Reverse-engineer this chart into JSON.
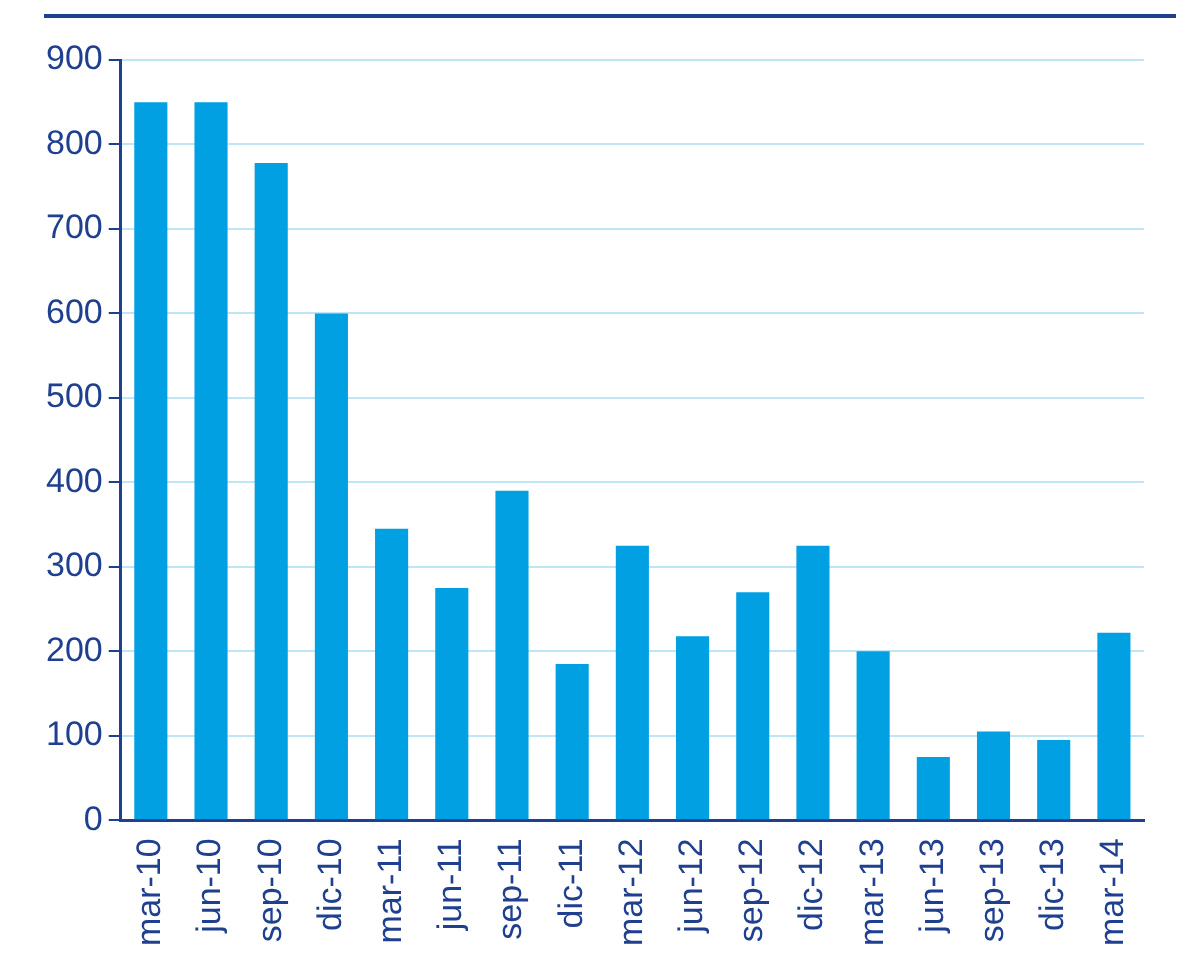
{
  "chart_data": {
    "type": "bar",
    "categories": [
      "mar-10",
      "jun-10",
      "sep-10",
      "dic-10",
      "mar-11",
      "jun-11",
      "sep-11",
      "dic-11",
      "mar-12",
      "jun-12",
      "sep-12",
      "dic-12",
      "mar-13",
      "jun-13",
      "sep-13",
      "dic-13",
      "mar-14"
    ],
    "values": [
      850,
      850,
      778,
      600,
      345,
      275,
      390,
      185,
      325,
      218,
      270,
      325,
      200,
      75,
      105,
      95,
      222
    ],
    "color": "#00a0e3",
    "ylim": [
      0,
      900
    ],
    "yticks": [
      0,
      100,
      200,
      300,
      400,
      500,
      600,
      700,
      800,
      900
    ],
    "grid": "y",
    "legend": false
  }
}
